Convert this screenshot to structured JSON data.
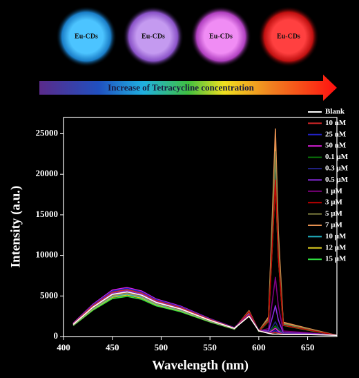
{
  "header": {
    "circle_labels": [
      "Eu-CDs",
      "Eu-CDs",
      "Eu-CDs",
      "Eu-CDs"
    ],
    "arrow_label": "Increase of Tetracycline concentration"
  },
  "chart_data": {
    "type": "line",
    "x_label": "Wavelength (nm)",
    "y_label": "Intensity (a.u.)",
    "x": [
      410,
      430,
      450,
      465,
      480,
      495,
      520,
      550,
      575,
      590,
      600,
      610,
      614,
      617,
      620,
      625,
      650,
      680
    ],
    "xlim": [
      400,
      680
    ],
    "xticks": [
      400,
      450,
      500,
      550,
      600,
      650
    ],
    "ylim": [
      0,
      27000
    ],
    "yticks": [
      0,
      5000,
      10000,
      15000,
      20000,
      25000
    ],
    "legend": "upper right",
    "series": [
      {
        "name": "Blank",
        "color": "#ffffff",
        "values": [
          1500,
          3600,
          5200,
          5500,
          5100,
          4200,
          3400,
          2000,
          1000,
          2500,
          700,
          400,
          300,
          300,
          300,
          250,
          250,
          150
        ]
      },
      {
        "name": "10 nM",
        "color": "#d62728",
        "values": [
          1575,
          3780,
          5460,
          5775,
          5355,
          4410,
          3570,
          2100,
          1050,
          2631,
          735,
          436,
          435,
          515,
          415,
          275,
          269,
          158
        ]
      },
      {
        "name": "25 nM",
        "color": "#2222c8",
        "values": [
          1620,
          3888,
          5616,
          5940,
          5508,
          4536,
          3672,
          2160,
          1080,
          2712,
          756,
          464,
          564,
          724,
          524,
          294,
          282,
          162
        ]
      },
      {
        "name": "50 nM",
        "color": "#e020e0",
        "values": [
          1650,
          3960,
          5720,
          6050,
          5610,
          4620,
          3740,
          2200,
          1100,
          2771,
          770,
          496,
          750,
          1030,
          680,
          317,
          296,
          165
        ]
      },
      {
        "name": "0.1 μM",
        "color": "#0a7a0a",
        "values": [
          1605,
          3852,
          5564,
          5885,
          5457,
          4494,
          3638,
          2140,
          1070,
          2705,
          749,
          508,
          921,
          1321,
          821,
          328,
          298,
          161
        ]
      },
      {
        "name": "0.3 μM",
        "color": "#202080",
        "values": [
          1575,
          3780,
          5460,
          5775,
          5355,
          4410,
          3570,
          2100,
          1050,
          2670,
          735,
          540,
          1215,
          1815,
          1065,
          352,
          307,
          158
        ]
      },
      {
        "name": "0.5 μM",
        "color": "#8a2be2",
        "values": [
          1545,
          3708,
          5356,
          5665,
          5253,
          4326,
          3502,
          2060,
          1030,
          2680,
          721,
          692,
          2409,
          3809,
          2059,
          468,
          363,
          155
        ]
      },
      {
        "name": "1 μM",
        "color": "#800080",
        "values": [
          1500,
          3600,
          5200,
          5500,
          5100,
          4200,
          3400,
          2000,
          1000,
          2710,
          700,
          960,
          4500,
          7300,
          3800,
          670,
          460,
          150
        ]
      },
      {
        "name": "3 μM",
        "color": "#c00000",
        "values": [
          1500,
          3600,
          5200,
          5500,
          5100,
          4200,
          3400,
          2000,
          1000,
          3070,
          700,
          1920,
          11700,
          19300,
          9800,
          1390,
          820,
          150
        ]
      },
      {
        "name": "5 μM",
        "color": "#808040",
        "values": [
          1470,
          3528,
          5096,
          5390,
          4998,
          4116,
          3332,
          1960,
          980,
          3125,
          686,
          2192,
          13794,
          22794,
          11544,
          1595,
          920,
          147
        ]
      },
      {
        "name": "7 μM",
        "color": "#e69050",
        "values": [
          1455,
          3492,
          5044,
          5335,
          4947,
          4074,
          3298,
          1940,
          970,
          3184,
          679,
          2412,
          15471,
          25591,
          12941,
          1761,
          1002,
          146
        ]
      },
      {
        "name": "10 μM",
        "color": "#20b0c0",
        "values": [
          1425,
          3420,
          4940,
          5225,
          4845,
          3990,
          3230,
          1900,
          950,
          3035,
          665,
          2140,
          13485,
          22285,
          11285,
          1558,
          898,
          143
        ]
      },
      {
        "name": "12 μM",
        "color": "#e0d020",
        "values": [
          1395,
          3348,
          4836,
          5115,
          4743,
          3906,
          3162,
          1860,
          930,
          3024,
          651,
          2236,
          14259,
          23579,
          11929,
          1631,
          932,
          140
        ]
      },
      {
        "name": "15 μM",
        "color": "#30e040",
        "values": [
          1350,
          3240,
          4680,
          4950,
          4590,
          3780,
          3060,
          1800,
          900,
          2820,
          630,
          1880,
          11670,
          19270,
          9770,
          1365,
          795,
          135
        ]
      }
    ]
  }
}
